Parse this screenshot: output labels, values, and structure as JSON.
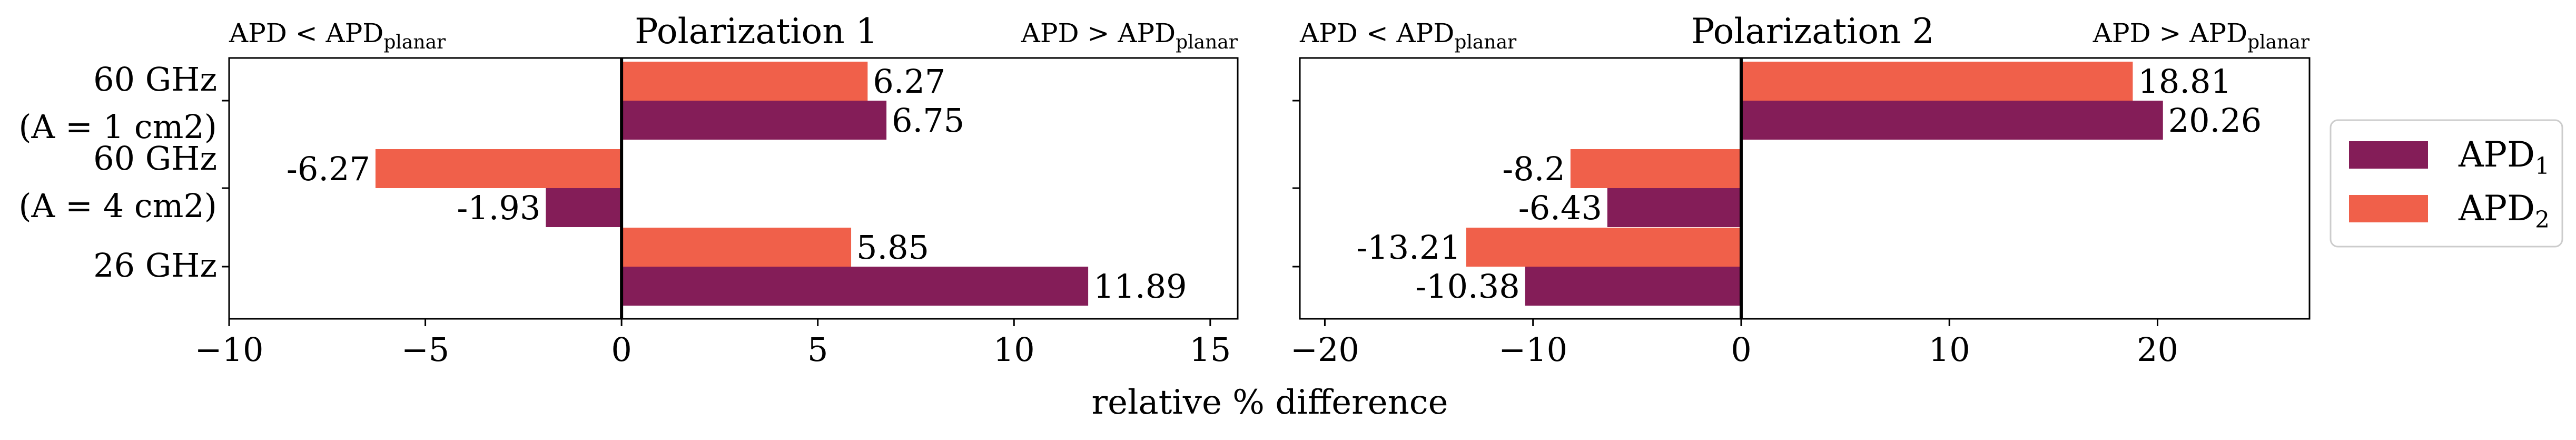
{
  "chart_data": [
    {
      "type": "bar",
      "orientation": "horizontal",
      "title": "Polarization 1",
      "left_annotation": {
        "base": "APD < APD",
        "sub": "planar"
      },
      "right_annotation": {
        "base": "APD > APD",
        "sub": "planar"
      },
      "categories": [
        "60 GHz\n(A = 1 cm2)",
        "60 GHz\n(A = 4 cm2)",
        "26 GHz"
      ],
      "category_lines": [
        [
          "60 GHz",
          "(A = 1 cm2)"
        ],
        [
          "60 GHz",
          "(A = 4 cm2)"
        ],
        [
          "26 GHz"
        ]
      ],
      "series": [
        {
          "key": "apd2",
          "values": [
            6.27,
            -6.27,
            5.85
          ],
          "color": "#f0604a"
        },
        {
          "key": "apd1",
          "values": [
            6.75,
            -1.93,
            11.89
          ],
          "color": "#841d58"
        }
      ],
      "xlim": [
        -10,
        15.7
      ],
      "xticks": [
        -10,
        -5,
        0,
        5,
        10,
        15
      ],
      "grid": false
    },
    {
      "type": "bar",
      "orientation": "horizontal",
      "title": "Polarization 2",
      "left_annotation": {
        "base": "APD < APD",
        "sub": "planar"
      },
      "right_annotation": {
        "base": "APD > APD",
        "sub": "planar"
      },
      "categories": [
        "60 GHz\n(A = 1 cm2)",
        "60 GHz\n(A = 4 cm2)",
        "26 GHz"
      ],
      "series": [
        {
          "key": "apd2",
          "values": [
            18.81,
            -8.2,
            -13.21
          ],
          "color": "#f0604a"
        },
        {
          "key": "apd1",
          "values": [
            20.26,
            -6.43,
            -10.38
          ],
          "color": "#841d58"
        }
      ],
      "xlim": [
        -21.2,
        27.3
      ],
      "xticks": [
        -20,
        -10,
        0,
        10,
        20
      ],
      "grid": false
    }
  ],
  "xlabel": "relative % difference",
  "legend": {
    "placement": "right",
    "entries": [
      {
        "key": "apd1",
        "base": "APD",
        "sub": "1",
        "color": "#841d58"
      },
      {
        "key": "apd2",
        "base": "APD",
        "sub": "2",
        "color": "#f0604a"
      }
    ]
  }
}
